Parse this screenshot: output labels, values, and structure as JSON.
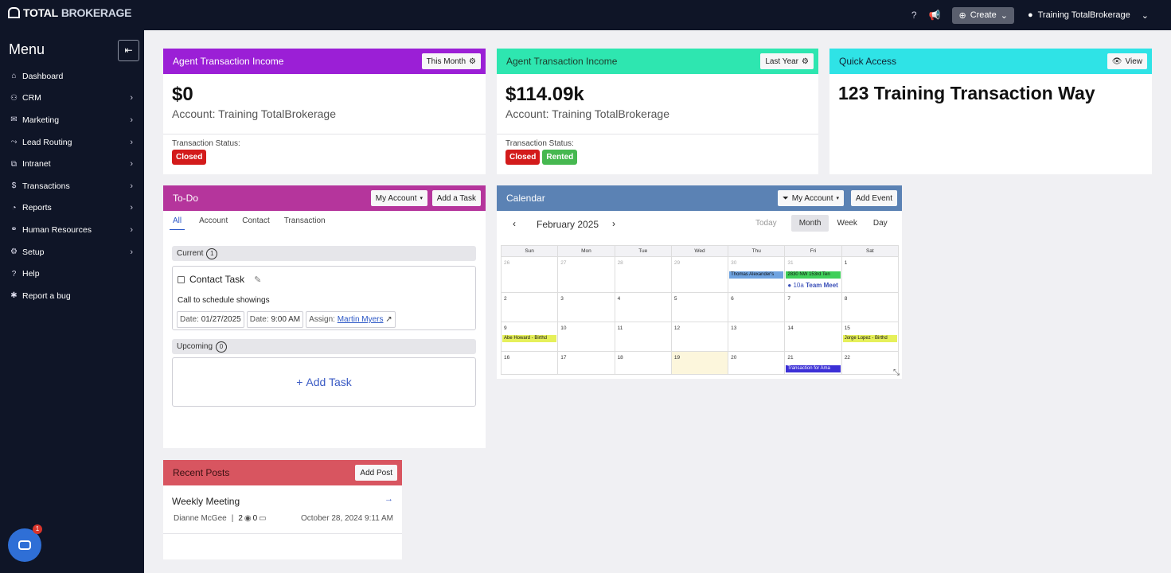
{
  "topbar": {
    "logo_total": "TOTAL",
    "logo_brokerage": "BROKERAGE",
    "create_label": "Create",
    "user_name": "Training TotalBrokerage"
  },
  "sidebar": {
    "title": "Menu",
    "items": [
      {
        "label": "Dashboard",
        "icon": "home-icon",
        "has_children": false
      },
      {
        "label": "CRM",
        "icon": "users-icon",
        "has_children": true
      },
      {
        "label": "Marketing",
        "icon": "mail-icon",
        "has_children": true
      },
      {
        "label": "Lead Routing",
        "icon": "routing-icon",
        "has_children": true
      },
      {
        "label": "Intranet",
        "icon": "network-icon",
        "has_children": true
      },
      {
        "label": "Transactions",
        "icon": "dollar-icon",
        "has_children": true
      },
      {
        "label": "Reports",
        "icon": "pie-chart-icon",
        "has_children": true
      },
      {
        "label": "Human Resources",
        "icon": "handshake-icon",
        "has_children": true
      },
      {
        "label": "Setup",
        "icon": "gear-icon",
        "has_children": true
      },
      {
        "label": "Help",
        "icon": "help-icon",
        "has_children": false
      },
      {
        "label": "Report a bug",
        "icon": "bug-icon",
        "has_children": false
      }
    ]
  },
  "income1": {
    "title": "Agent Transaction Income",
    "period": "This Month",
    "amount": "$0",
    "account": "Account: Training TotalBrokerage",
    "status_label": "Transaction Status:",
    "badges": [
      "Closed"
    ],
    "color": "#9b1fd6"
  },
  "income2": {
    "title": "Agent Transaction Income",
    "period": "Last Year",
    "amount": "$114.09k",
    "account": "Account: Training TotalBrokerage",
    "status_label": "Transaction Status:",
    "badges": [
      "Closed",
      "Rented"
    ],
    "color": "#2ee6b0"
  },
  "quick": {
    "title": "Quick Access",
    "view_label": "View",
    "address": "123 Training Transaction Way",
    "color": "#2fe3e6"
  },
  "todo": {
    "title": "To-Do",
    "account_filter": "My Account",
    "add_task_label": "Add a Task",
    "tabs": [
      "All",
      "Account",
      "Contact",
      "Transaction"
    ],
    "current_label": "Current",
    "current_count": "1",
    "task": {
      "title": "Contact Task",
      "description": "Call to schedule showings",
      "date_label": "Date:",
      "date": "01/27/2025",
      "time_label": "Date:",
      "time": "9:00 AM",
      "assign_label": "Assign:",
      "assignee": "Martin Myers"
    },
    "upcoming_label": "Upcoming",
    "upcoming_count": "0",
    "add_task_big": "Add Task",
    "color": "#b5359c"
  },
  "calendar": {
    "title": "Calendar",
    "account_filter": "My Account",
    "add_event_label": "Add Event",
    "month_label": "February 2025",
    "views": [
      "Today",
      "Month",
      "Week",
      "Day"
    ],
    "weekdays": [
      "Sun",
      "Mon",
      "Tue",
      "Wed",
      "Thu",
      "Fri",
      "Sat"
    ],
    "weeks": [
      [
        "26",
        "27",
        "28",
        "29",
        "30",
        "31",
        "1"
      ],
      [
        "2",
        "3",
        "4",
        "5",
        "6",
        "7",
        "8"
      ],
      [
        "9",
        "10",
        "11",
        "12",
        "13",
        "14",
        "15"
      ],
      [
        "16",
        "17",
        "18",
        "19",
        "20",
        "21",
        "22"
      ]
    ],
    "events": {
      "thomas": "Thomas Alexander's",
      "tenant": "2830 NW 153rd Ten",
      "team_time": "10a",
      "team": "Team Meet",
      "abe": "Abe Howard - Birthd",
      "jorge": "Jorge Lopez - Birthd",
      "amazon": "Transaction for Ama"
    },
    "color": "#5b82b4"
  },
  "posts": {
    "title": "Recent Posts",
    "add_post_label": "Add Post",
    "post_title": "Weekly Meeting",
    "author": "Dianne McGee",
    "views": "2",
    "comments": "0",
    "date": "October 28, 2024 9:11 AM",
    "color": "#d85560"
  },
  "chat": {
    "badge": "1"
  },
  "colors": {
    "closed": "#d31b1b",
    "rented": "#46b850",
    "nav_bg": "#0f1527"
  }
}
